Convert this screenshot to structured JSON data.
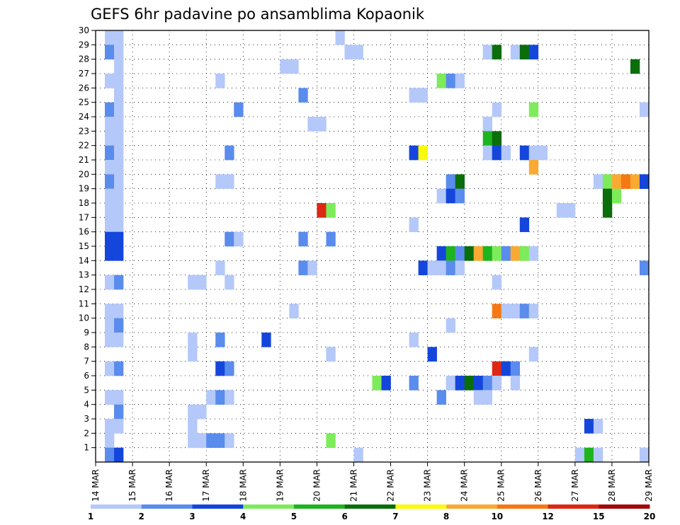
{
  "chart_data": {
    "type": "heatmap",
    "title": "GEFS 6hr padavine po ansamblima Kopaonik",
    "xlabel": "",
    "ylabel": "",
    "x_tick_labels": [
      "14 MAR",
      "15 MAR",
      "16 MAR",
      "17 MAR",
      "18 MAR",
      "19 MAR",
      "20 MAR",
      "21 MAR",
      "22 MAR",
      "23 MAR",
      "24 MAR",
      "25 MAR",
      "26 MAR",
      "27 MAR",
      "28 MAR",
      "29 MAR"
    ],
    "y_tick_labels": [
      "1",
      "2",
      "3",
      "4",
      "5",
      "6",
      "7",
      "8",
      "9",
      "10",
      "11",
      "12",
      "13",
      "14",
      "15",
      "16",
      "17",
      "18",
      "19",
      "20",
      "21",
      "22",
      "23",
      "24",
      "25",
      "26",
      "27",
      "28",
      "29",
      "30"
    ],
    "x_range": [
      0,
      60
    ],
    "y_range": [
      0,
      30
    ],
    "grid": true,
    "legend_position": "bottom",
    "color_scale": {
      "labels": [
        "1",
        "2",
        "3",
        "4",
        "5",
        "6",
        "7",
        "8",
        "10",
        "12",
        "15",
        "20"
      ],
      "colors": [
        "#b4c8fa",
        "#5a8ced",
        "#1446dc",
        "#7deb5a",
        "#1eb41e",
        "#0a6e0a",
        "#fafa0a",
        "#faaa32",
        "#f57814",
        "#dc2814",
        "#a00a0a"
      ]
    },
    "cells": [
      [
        1,
        29,
        1
      ],
      [
        1,
        28,
        2
      ],
      [
        1,
        26,
        1
      ],
      [
        1,
        24,
        2
      ],
      [
        1,
        23,
        1
      ],
      [
        1,
        22,
        1
      ],
      [
        1,
        21,
        2
      ],
      [
        1,
        20,
        1
      ],
      [
        1,
        19,
        2
      ],
      [
        1,
        18,
        1
      ],
      [
        1,
        17,
        1
      ],
      [
        1,
        16,
        1
      ],
      [
        1,
        15,
        3
      ],
      [
        1,
        14,
        3
      ],
      [
        1,
        12,
        1
      ],
      [
        1,
        10,
        1
      ],
      [
        1,
        9,
        1
      ],
      [
        1,
        8,
        1
      ],
      [
        1,
        6,
        1
      ],
      [
        1,
        4,
        1
      ],
      [
        1,
        2,
        1
      ],
      [
        1,
        1,
        1
      ],
      [
        1,
        0,
        2
      ],
      [
        2,
        29,
        1
      ],
      [
        2,
        28,
        1
      ],
      [
        2,
        27,
        1
      ],
      [
        2,
        26,
        1
      ],
      [
        2,
        25,
        1
      ],
      [
        2,
        24,
        1
      ],
      [
        2,
        23,
        1
      ],
      [
        2,
        22,
        1
      ],
      [
        2,
        21,
        1
      ],
      [
        2,
        20,
        1
      ],
      [
        2,
        19,
        1
      ],
      [
        2,
        18,
        1
      ],
      [
        2,
        17,
        1
      ],
      [
        2,
        16,
        1
      ],
      [
        2,
        15,
        3
      ],
      [
        2,
        14,
        3
      ],
      [
        2,
        12,
        2
      ],
      [
        2,
        10,
        1
      ],
      [
        2,
        9,
        2
      ],
      [
        2,
        8,
        1
      ],
      [
        2,
        6,
        2
      ],
      [
        2,
        4,
        1
      ],
      [
        2,
        3,
        2
      ],
      [
        2,
        2,
        1
      ],
      [
        2,
        0,
        3
      ],
      [
        10,
        7,
        1
      ],
      [
        10,
        2,
        1
      ],
      [
        10,
        3,
        1
      ],
      [
        10,
        1,
        1
      ],
      [
        10,
        12,
        1
      ],
      [
        10,
        8,
        1
      ],
      [
        11,
        12,
        1
      ],
      [
        11,
        3,
        1
      ],
      [
        11,
        1,
        1
      ],
      [
        12,
        4,
        1
      ],
      [
        12,
        1,
        2
      ],
      [
        13,
        26,
        1
      ],
      [
        13,
        19,
        1
      ],
      [
        13,
        13,
        1
      ],
      [
        13,
        8,
        2
      ],
      [
        13,
        6,
        3
      ],
      [
        13,
        4,
        2
      ],
      [
        13,
        1,
        2
      ],
      [
        14,
        19,
        1
      ],
      [
        14,
        21,
        2
      ],
      [
        14,
        15,
        2
      ],
      [
        14,
        12,
        1
      ],
      [
        14,
        6,
        2
      ],
      [
        14,
        4,
        1
      ],
      [
        14,
        1,
        1
      ],
      [
        15,
        24,
        2
      ],
      [
        15,
        15,
        1
      ],
      [
        18,
        8,
        3
      ],
      [
        20,
        27,
        1
      ],
      [
        21,
        27,
        1
      ],
      [
        21,
        10,
        1
      ],
      [
        22,
        25,
        2
      ],
      [
        22,
        13,
        2
      ],
      [
        22,
        15,
        2
      ],
      [
        23,
        23,
        1
      ],
      [
        23,
        13,
        1
      ],
      [
        24,
        23,
        1
      ],
      [
        24,
        17,
        10
      ],
      [
        25,
        17,
        4
      ],
      [
        25,
        15,
        2
      ],
      [
        25,
        7,
        1
      ],
      [
        25,
        1,
        4
      ],
      [
        26,
        29,
        1
      ],
      [
        27,
        28,
        1
      ],
      [
        28,
        28,
        1
      ],
      [
        28,
        0,
        1
      ],
      [
        30,
        5,
        4
      ],
      [
        31,
        5,
        3
      ],
      [
        34,
        25,
        1
      ],
      [
        34,
        21,
        3
      ],
      [
        34,
        16,
        1
      ],
      [
        34,
        8,
        1
      ],
      [
        34,
        5,
        2
      ],
      [
        35,
        25,
        1
      ],
      [
        35,
        21,
        7
      ],
      [
        35,
        13,
        3
      ],
      [
        36,
        13,
        1
      ],
      [
        36,
        7,
        3
      ],
      [
        37,
        26,
        4
      ],
      [
        37,
        18,
        1
      ],
      [
        37,
        14,
        3
      ],
      [
        37,
        13,
        1
      ],
      [
        37,
        4,
        2
      ],
      [
        38,
        26,
        2
      ],
      [
        38,
        19,
        2
      ],
      [
        38,
        18,
        3
      ],
      [
        38,
        14,
        5
      ],
      [
        38,
        13,
        2
      ],
      [
        38,
        9,
        1
      ],
      [
        38,
        5,
        1
      ],
      [
        39,
        26,
        1
      ],
      [
        39,
        19,
        6
      ],
      [
        39,
        18,
        2
      ],
      [
        39,
        14,
        2
      ],
      [
        39,
        13,
        1
      ],
      [
        39,
        5,
        3
      ],
      [
        40,
        14,
        6
      ],
      [
        40,
        5,
        6
      ],
      [
        41,
        14,
        8
      ],
      [
        41,
        5,
        3
      ],
      [
        41,
        4,
        1
      ],
      [
        42,
        28,
        1
      ],
      [
        42,
        23,
        1
      ],
      [
        42,
        22,
        5
      ],
      [
        42,
        21,
        1
      ],
      [
        42,
        14,
        5
      ],
      [
        42,
        5,
        2
      ],
      [
        42,
        4,
        1
      ],
      [
        43,
        28,
        6
      ],
      [
        43,
        24,
        1
      ],
      [
        43,
        22,
        6
      ],
      [
        43,
        21,
        3
      ],
      [
        43,
        14,
        4
      ],
      [
        43,
        12,
        1
      ],
      [
        43,
        10,
        9
      ],
      [
        43,
        6,
        10
      ],
      [
        43,
        5,
        1
      ],
      [
        44,
        21,
        1
      ],
      [
        44,
        14,
        2
      ],
      [
        44,
        10,
        1
      ],
      [
        44,
        6,
        3
      ],
      [
        45,
        28,
        1
      ],
      [
        45,
        14,
        8
      ],
      [
        45,
        10,
        1
      ],
      [
        45,
        6,
        2
      ],
      [
        45,
        5,
        1
      ],
      [
        46,
        28,
        6
      ],
      [
        46,
        21,
        3
      ],
      [
        46,
        16,
        3
      ],
      [
        46,
        14,
        4
      ],
      [
        46,
        10,
        2
      ],
      [
        47,
        28,
        3
      ],
      [
        47,
        24,
        4
      ],
      [
        47,
        21,
        1
      ],
      [
        47,
        20,
        8
      ],
      [
        47,
        14,
        1
      ],
      [
        47,
        10,
        1
      ],
      [
        47,
        7,
        1
      ],
      [
        48,
        21,
        1
      ],
      [
        50,
        17,
        1
      ],
      [
        51,
        17,
        1
      ],
      [
        52,
        0,
        1
      ],
      [
        53,
        2,
        3
      ],
      [
        53,
        0,
        5
      ],
      [
        54,
        19,
        1
      ],
      [
        54,
        2,
        1
      ],
      [
        54,
        0,
        1
      ],
      [
        55,
        19,
        4
      ],
      [
        55,
        18,
        6
      ],
      [
        55,
        17,
        6
      ],
      [
        56,
        19,
        8
      ],
      [
        56,
        18,
        4
      ],
      [
        57,
        19,
        9
      ],
      [
        58,
        27,
        6
      ],
      [
        58,
        19,
        8
      ],
      [
        59,
        24,
        1
      ],
      [
        59,
        19,
        3
      ],
      [
        59,
        13,
        2
      ],
      [
        59,
        0,
        1
      ]
    ]
  }
}
